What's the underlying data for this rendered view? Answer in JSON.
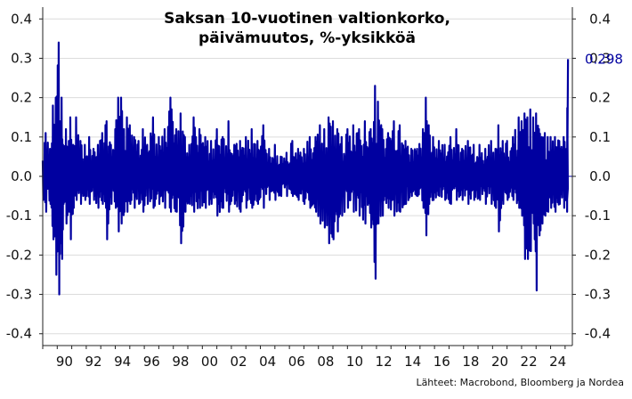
{
  "chart_data": {
    "type": "line",
    "title_lines": [
      "Saksan 10-vuotinen valtionkorko,",
      "päivämuutos, %-yksikköä"
    ],
    "source": "Lähteet: Macrobond, Bloomberg ja Nordea",
    "xlabel": "",
    "ylabel": "",
    "ylim": [
      -0.43,
      0.43
    ],
    "xlim": [
      1989.0,
      2025.5
    ],
    "y_ticks": [
      0.4,
      0.3,
      0.2,
      0.1,
      0.0,
      -0.1,
      -0.2,
      -0.3,
      -0.4
    ],
    "y_tick_labels": [
      "0.4",
      "0.3",
      "0.2",
      "0.1",
      "0.0",
      "-0.1",
      "-0.2",
      "-0.3",
      "-0.4"
    ],
    "x_ticks": [
      1990,
      1992,
      1994,
      1996,
      1998,
      2000,
      2002,
      2004,
      2006,
      2008,
      2010,
      2012,
      2014,
      2016,
      2018,
      2020,
      2022,
      2024
    ],
    "x_tick_labels": [
      "90",
      "92",
      "94",
      "96",
      "98",
      "00",
      "02",
      "04",
      "06",
      "08",
      "10",
      "12",
      "14",
      "16",
      "18",
      "20",
      "22",
      "24"
    ],
    "grid": "horizontal",
    "last_value_label": "0.298",
    "series": [
      {
        "color": "#0000a0",
        "x": [
          1989.0,
          1989.2,
          1989.5,
          1989.7,
          1989.9,
          1990.1,
          1990.2,
          1990.3,
          1990.4,
          1990.6,
          1990.8,
          1990.9,
          1991.1,
          1991.3,
          1991.6,
          1991.9,
          1992.2,
          1992.5,
          1992.8,
          1993.1,
          1993.4,
          1993.7,
          1994.0,
          1994.2,
          1994.4,
          1994.6,
          1994.8,
          1995.0,
          1995.3,
          1995.6,
          1995.9,
          1996.2,
          1996.6,
          1997.0,
          1997.4,
          1997.8,
          1998.2,
          1998.5,
          1998.8,
          1999.1,
          1999.4,
          1999.8,
          2000.2,
          2000.6,
          2001.0,
          2001.4,
          2001.8,
          2002.2,
          2002.6,
          2003.0,
          2003.4,
          2003.8,
          2004.2,
          2004.6,
          2005.0,
          2005.4,
          2005.8,
          2006.2,
          2006.6,
          2007.0,
          2007.4,
          2007.8,
          2008.1,
          2008.4,
          2008.7,
          2009.0,
          2009.3,
          2009.6,
          2010.0,
          2010.4,
          2010.8,
          2011.2,
          2011.6,
          2011.9,
          2012.1,
          2012.4,
          2012.8,
          2013.2,
          2013.6,
          2014.0,
          2014.4,
          2014.8,
          2015.2,
          2015.4,
          2015.6,
          2015.9,
          2016.3,
          2016.7,
          2017.1,
          2017.5,
          2017.9,
          2018.3,
          2018.7,
          2019.1,
          2019.5,
          2019.9,
          2020.2,
          2020.4,
          2020.7,
          2021.0,
          2021.4,
          2021.8,
          2022.0,
          2022.2,
          2022.4,
          2022.6,
          2022.8,
          2023.0,
          2023.2,
          2023.4,
          2023.6,
          2023.8,
          2024.0,
          2024.3,
          2024.6,
          2024.9,
          2025.1,
          2025.2
        ],
        "high": [
          0.04,
          0.11,
          0.07,
          0.18,
          0.2,
          0.34,
          0.14,
          0.2,
          0.08,
          0.12,
          0.09,
          0.15,
          0.08,
          0.15,
          0.09,
          0.08,
          0.1,
          0.07,
          0.08,
          0.11,
          0.14,
          0.08,
          0.12,
          0.2,
          0.2,
          0.12,
          0.15,
          0.13,
          0.1,
          0.09,
          0.12,
          0.08,
          0.15,
          0.1,
          0.12,
          0.2,
          0.12,
          0.16,
          0.1,
          0.08,
          0.15,
          0.12,
          0.1,
          0.09,
          0.12,
          0.1,
          0.14,
          0.08,
          0.09,
          0.1,
          0.12,
          0.09,
          0.13,
          0.07,
          0.08,
          0.05,
          0.06,
          0.09,
          0.07,
          0.07,
          0.1,
          0.1,
          0.13,
          0.12,
          0.15,
          0.14,
          0.12,
          0.1,
          0.12,
          0.13,
          0.12,
          0.14,
          0.12,
          0.23,
          0.19,
          0.12,
          0.11,
          0.14,
          0.13,
          0.09,
          0.07,
          0.07,
          0.12,
          0.2,
          0.13,
          0.1,
          0.09,
          0.08,
          0.1,
          0.12,
          0.07,
          0.09,
          0.08,
          0.08,
          0.07,
          0.09,
          0.07,
          0.13,
          0.09,
          0.09,
          0.1,
          0.15,
          0.14,
          0.16,
          0.15,
          0.17,
          0.15,
          0.16,
          0.12,
          0.1,
          0.11,
          0.1,
          0.1,
          0.1,
          0.09,
          0.1,
          0.07,
          0.298
        ],
        "low": [
          -0.06,
          -0.09,
          -0.07,
          -0.16,
          -0.25,
          -0.3,
          -0.17,
          -0.21,
          -0.07,
          -0.12,
          -0.09,
          -0.16,
          -0.08,
          -0.06,
          -0.07,
          -0.06,
          -0.07,
          -0.06,
          -0.08,
          -0.07,
          -0.16,
          -0.07,
          -0.08,
          -0.14,
          -0.12,
          -0.09,
          -0.09,
          -0.07,
          -0.08,
          -0.07,
          -0.09,
          -0.07,
          -0.08,
          -0.07,
          -0.08,
          -0.09,
          -0.09,
          -0.17,
          -0.09,
          -0.07,
          -0.09,
          -0.08,
          -0.08,
          -0.07,
          -0.1,
          -0.08,
          -0.09,
          -0.07,
          -0.09,
          -0.08,
          -0.08,
          -0.07,
          -0.08,
          -0.06,
          -0.06,
          -0.05,
          -0.05,
          -0.05,
          -0.06,
          -0.07,
          -0.08,
          -0.09,
          -0.12,
          -0.13,
          -0.17,
          -0.16,
          -0.14,
          -0.1,
          -0.08,
          -0.09,
          -0.1,
          -0.12,
          -0.13,
          -0.26,
          -0.12,
          -0.1,
          -0.08,
          -0.1,
          -0.09,
          -0.07,
          -0.05,
          -0.05,
          -0.08,
          -0.15,
          -0.07,
          -0.06,
          -0.05,
          -0.06,
          -0.07,
          -0.06,
          -0.06,
          -0.07,
          -0.06,
          -0.06,
          -0.07,
          -0.07,
          -0.08,
          -0.14,
          -0.07,
          -0.06,
          -0.06,
          -0.08,
          -0.1,
          -0.21,
          -0.21,
          -0.19,
          -0.12,
          -0.29,
          -0.15,
          -0.12,
          -0.1,
          -0.09,
          -0.08,
          -0.09,
          -0.07,
          -0.08,
          -0.09,
          -0.06
        ]
      }
    ]
  }
}
